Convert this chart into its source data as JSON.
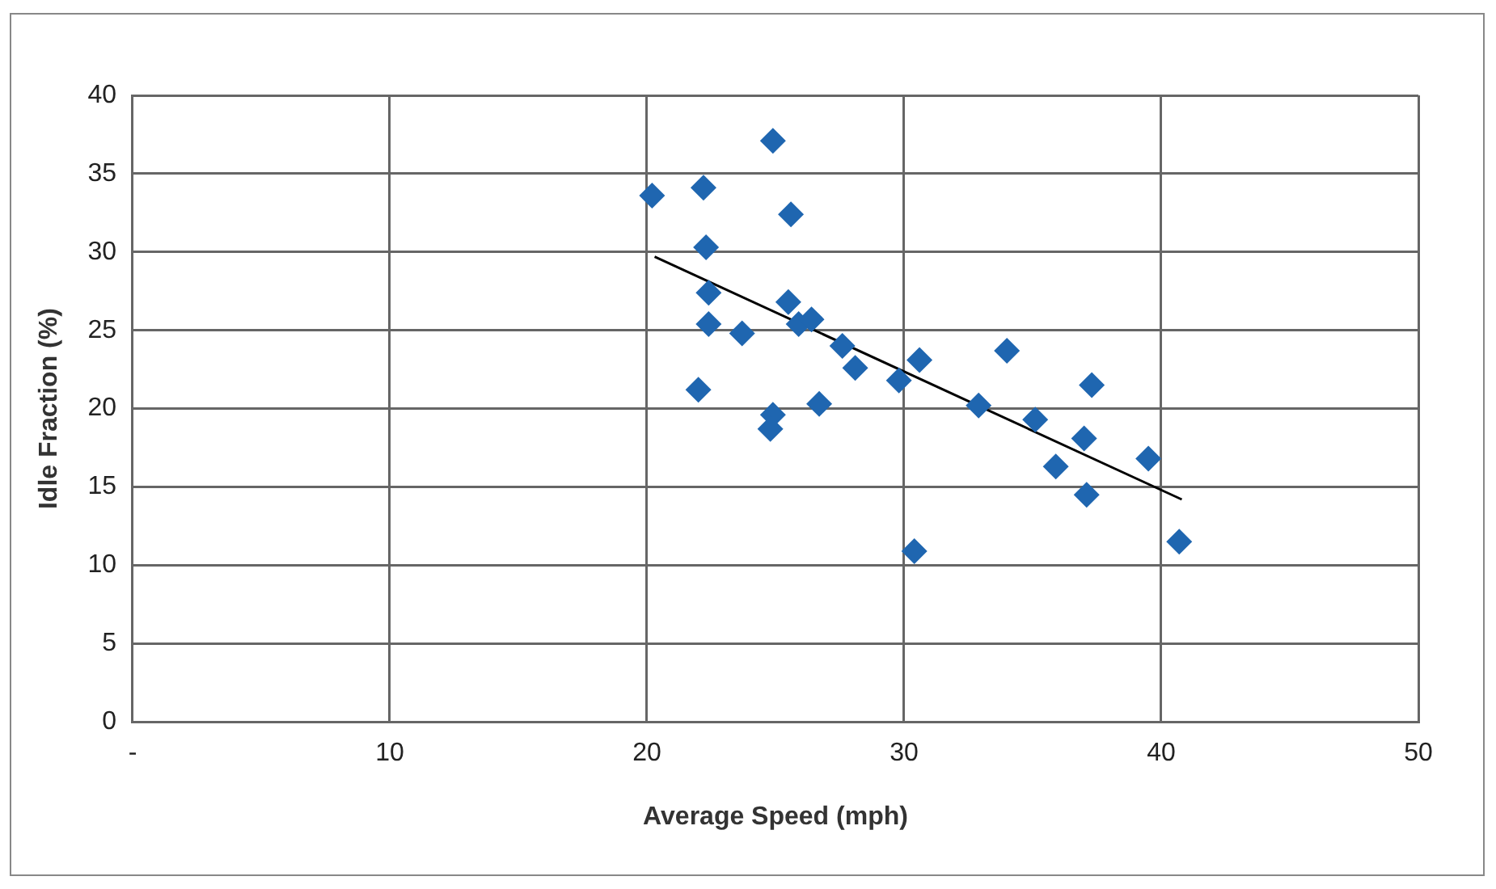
{
  "chart_data": {
    "type": "scatter",
    "xlabel": "Average Speed (mph)",
    "ylabel": "Idle Fraction (%)",
    "xlim": [
      0,
      50
    ],
    "xticks": [
      {
        "value": 0,
        "label": "-"
      },
      10,
      20,
      30,
      40,
      50
    ],
    "ylim": [
      0,
      40
    ],
    "yticks": [
      0,
      5,
      10,
      15,
      20,
      25,
      30,
      35,
      40
    ],
    "grid": true,
    "legend": false,
    "marker": "diamond",
    "series": [
      {
        "color": "#1f66b0",
        "x": [
          20.2,
          22.2,
          22.3,
          22.4,
          22.4,
          23.7,
          22.0,
          24.9,
          25.6,
          25.5,
          25.9,
          26.4,
          24.9,
          24.8,
          26.7,
          27.6,
          28.1,
          29.8,
          30.6,
          30.4,
          32.9,
          34.0,
          35.1,
          37.3,
          37.0,
          35.9,
          37.1,
          39.5,
          40.7
        ],
        "values": [
          33.6,
          34.1,
          30.3,
          27.4,
          25.4,
          24.8,
          21.2,
          37.1,
          32.4,
          26.8,
          25.4,
          25.7,
          19.6,
          18.7,
          20.3,
          24.0,
          22.6,
          21.8,
          23.1,
          10.9,
          20.2,
          23.7,
          19.3,
          21.5,
          18.1,
          16.3,
          14.5,
          16.8,
          11.5
        ]
      },
      {
        "type": "line",
        "color": "#000000",
        "marker": "none",
        "x": [
          20.3,
          40.8
        ],
        "values": [
          29.7,
          14.2
        ]
      }
    ]
  }
}
